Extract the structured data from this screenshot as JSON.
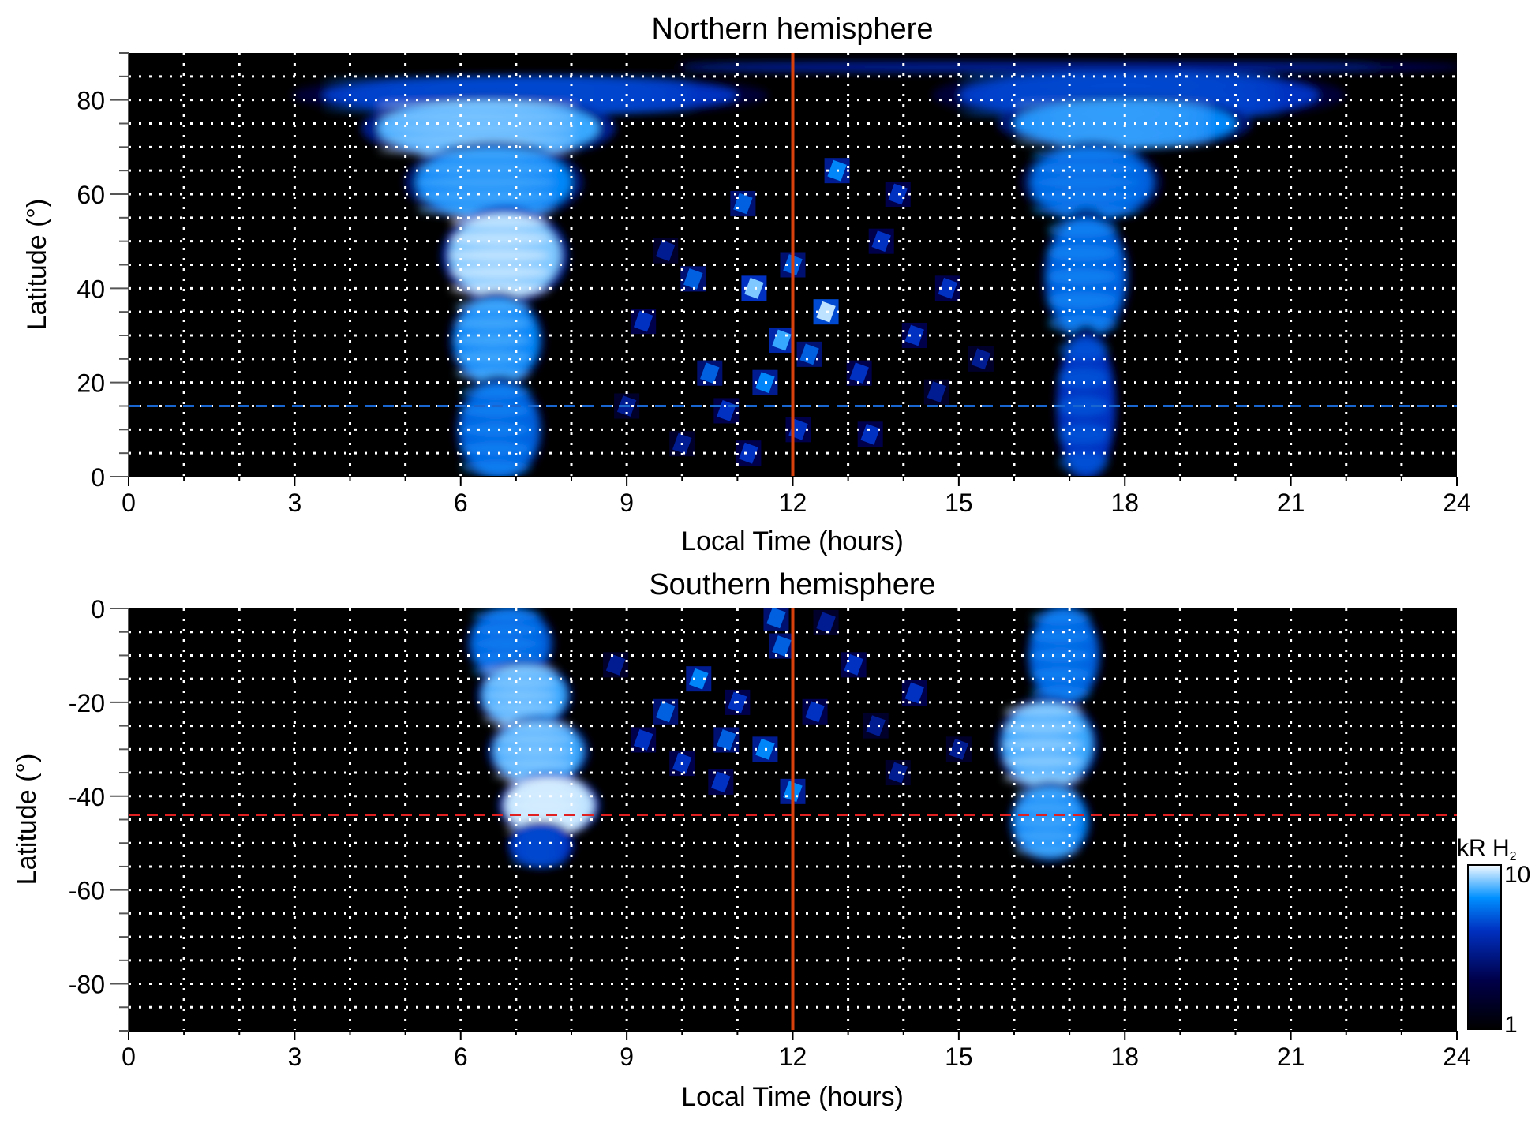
{
  "chart_data": [
    {
      "type": "heatmap",
      "title": "Northern hemisphere",
      "xlabel": "Local Time (hours)",
      "ylabel": "Latitude (°)",
      "xlim": [
        0,
        24
      ],
      "ylim": [
        0,
        90
      ],
      "xticks": [
        "0",
        "3",
        "6",
        "9",
        "12",
        "15",
        "18",
        "21",
        "24"
      ],
      "yticks": [
        "0",
        "20",
        "40",
        "60",
        "80"
      ],
      "ytick_values": [
        0,
        20,
        40,
        60,
        80
      ],
      "grid": true,
      "vertical_line": {
        "x": 12,
        "color": "#d8400c"
      },
      "horizontal_line": {
        "y": 15,
        "color": "#1a66d0",
        "style": "dashed"
      },
      "regions": [
        {
          "lt": [
            3.5,
            11
          ],
          "lat": [
            77,
            85
          ],
          "intensity": 4
        },
        {
          "lt": [
            4.5,
            8.5
          ],
          "lat": [
            68,
            80
          ],
          "intensity": 7
        },
        {
          "lt": [
            5.2,
            8
          ],
          "lat": [
            55,
            70
          ],
          "intensity": 6
        },
        {
          "lt": [
            5.8,
            7.8
          ],
          "lat": [
            38,
            56
          ],
          "intensity": 8
        },
        {
          "lt": [
            5.9,
            7.4
          ],
          "lat": [
            20,
            38
          ],
          "intensity": 6
        },
        {
          "lt": [
            6.0,
            7.4
          ],
          "lat": [
            0,
            20
          ],
          "intensity": 5
        },
        {
          "lt": [
            15,
            21.5
          ],
          "lat": [
            76,
            86
          ],
          "intensity": 4
        },
        {
          "lt": [
            16,
            20
          ],
          "lat": [
            70,
            80
          ],
          "intensity": 6
        },
        {
          "lt": [
            16.3,
            18.5
          ],
          "lat": [
            55,
            70
          ],
          "intensity": 5
        },
        {
          "lt": [
            16.6,
            18
          ],
          "lat": [
            30,
            55
          ],
          "intensity": 5
        },
        {
          "lt": [
            16.8,
            17.8
          ],
          "lat": [
            0,
            30
          ],
          "intensity": 4
        },
        {
          "lt": [
            10,
            24
          ],
          "lat": [
            86,
            88
          ],
          "intensity": 2.5
        }
      ],
      "spots": [
        [
          11.3,
          40,
          8
        ],
        [
          12.6,
          35,
          9
        ],
        [
          11.8,
          29,
          7
        ],
        [
          10.2,
          42,
          5
        ],
        [
          11.1,
          58,
          5
        ],
        [
          12.8,
          65,
          6
        ],
        [
          13.6,
          50,
          4
        ],
        [
          9.3,
          33,
          4
        ],
        [
          10.5,
          22,
          5
        ],
        [
          11.5,
          20,
          6
        ],
        [
          12.3,
          26,
          5
        ],
        [
          13.2,
          22,
          4
        ],
        [
          14.2,
          30,
          4
        ],
        [
          14.8,
          40,
          4
        ],
        [
          9.7,
          48,
          3
        ],
        [
          12.1,
          10,
          4
        ],
        [
          13.4,
          9,
          4
        ],
        [
          10.0,
          7,
          3
        ],
        [
          11.2,
          5,
          4
        ],
        [
          14.6,
          18,
          3
        ],
        [
          15.4,
          25,
          3
        ],
        [
          13.9,
          60,
          4
        ],
        [
          12.0,
          45,
          5
        ],
        [
          10.8,
          14,
          4
        ],
        [
          9.0,
          15,
          3
        ]
      ]
    },
    {
      "type": "heatmap",
      "title": "Southern hemisphere",
      "xlabel": "Local Time (hours)",
      "ylabel": "Latitude (°)",
      "xlim": [
        0,
        24
      ],
      "ylim": [
        -90,
        0
      ],
      "xticks": [
        "0",
        "3",
        "6",
        "9",
        "12",
        "15",
        "18",
        "21",
        "24"
      ],
      "yticks": [
        "0",
        "-20",
        "-40",
        "-60",
        "-80"
      ],
      "ytick_values": [
        0,
        -20,
        -40,
        -60,
        -80
      ],
      "grid": true,
      "vertical_line": {
        "x": 12,
        "color": "#d8400c"
      },
      "horizontal_line": {
        "y": -44,
        "color": "#e02020",
        "style": "dashed"
      },
      "regions": [
        {
          "lt": [
            6.2,
            7.6
          ],
          "lat": [
            -15,
            0
          ],
          "intensity": 5
        },
        {
          "lt": [
            6.4,
            7.9
          ],
          "lat": [
            -25,
            -12
          ],
          "intensity": 7
        },
        {
          "lt": [
            6.6,
            8.2
          ],
          "lat": [
            -37,
            -24
          ],
          "intensity": 7
        },
        {
          "lt": [
            6.8,
            8.4
          ],
          "lat": [
            -48,
            -36
          ],
          "intensity": 9
        },
        {
          "lt": [
            6.9,
            8.0
          ],
          "lat": [
            -55,
            -46
          ],
          "intensity": 4
        },
        {
          "lt": [
            16.3,
            17.5
          ],
          "lat": [
            -20,
            0
          ],
          "intensity": 5
        },
        {
          "lt": [
            15.8,
            17.4
          ],
          "lat": [
            -38,
            -20
          ],
          "intensity": 7
        },
        {
          "lt": [
            16.0,
            17.3
          ],
          "lat": [
            -53,
            -38
          ],
          "intensity": 6
        }
      ],
      "spots": [
        [
          10.3,
          -15,
          6
        ],
        [
          11.8,
          -8,
          5
        ],
        [
          11.5,
          -30,
          6
        ],
        [
          12.0,
          -39,
          6
        ],
        [
          10.8,
          -28,
          5
        ],
        [
          9.7,
          -22,
          5
        ],
        [
          8.8,
          -12,
          3
        ],
        [
          10.0,
          -33,
          4
        ],
        [
          12.4,
          -22,
          4
        ],
        [
          13.1,
          -12,
          4
        ],
        [
          14.2,
          -18,
          4
        ],
        [
          13.9,
          -35,
          3
        ],
        [
          11.0,
          -20,
          4
        ],
        [
          12.6,
          -3,
          3
        ],
        [
          9.3,
          -28,
          4
        ],
        [
          15.0,
          -30,
          3
        ],
        [
          13.5,
          -25,
          3
        ],
        [
          11.7,
          -2,
          5
        ],
        [
          10.7,
          -37,
          4
        ]
      ]
    }
  ],
  "colorbar": {
    "label": "kR H",
    "label_subscript": "2",
    "max_label": "10",
    "min_label": "1",
    "range": [
      1,
      10
    ],
    "scale": "log",
    "colors": [
      "#000000",
      "#00004a",
      "#0030c0",
      "#0090ff",
      "#f4faff"
    ]
  }
}
